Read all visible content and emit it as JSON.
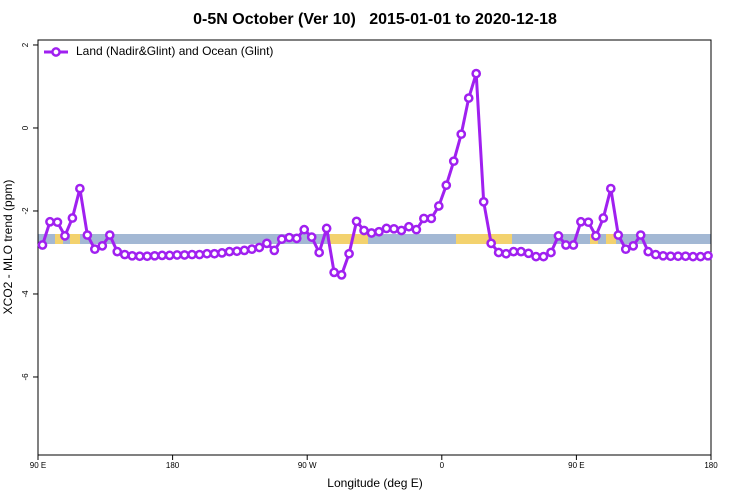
{
  "chart_data": {
    "type": "line",
    "title": "0-5N October (Ver 10)   2015-01-01 to 2020-12-18",
    "x_label": "Longitude (deg E)",
    "y_label": "XCO2 - MLO trend (ppm)",
    "xlim": [
      90,
      540
    ],
    "ylim": [
      -7.88,
      2.12
    ],
    "xticks": [
      {
        "value": 90,
        "label": "90 E"
      },
      {
        "value": 180,
        "label": "180"
      },
      {
        "value": 270,
        "label": "90 W"
      },
      {
        "value": 360,
        "label": "0"
      },
      {
        "value": 450,
        "label": "90 E"
      },
      {
        "value": 540,
        "label": "180"
      }
    ],
    "yticks": [
      2,
      0,
      -2,
      -4,
      -6
    ],
    "legend": "top-left",
    "grid": false,
    "x": [
      93,
      98,
      103,
      108,
      113,
      118,
      123,
      128,
      133,
      138,
      143,
      148,
      153,
      158,
      163,
      168,
      173,
      178,
      183,
      188,
      193,
      198,
      203,
      208,
      213,
      218,
      223,
      228,
      233,
      238,
      243,
      248,
      253,
      258,
      263,
      268,
      273,
      278,
      283,
      288,
      293,
      298,
      303,
      308,
      313,
      318,
      323,
      328,
      333,
      338,
      343,
      348,
      353,
      358,
      363,
      368,
      373,
      378,
      383,
      388,
      393,
      398,
      403,
      408,
      413,
      418,
      423,
      428,
      433,
      438,
      443,
      448,
      453,
      458,
      463,
      468,
      473,
      478,
      483,
      488,
      493,
      498,
      503,
      508,
      513,
      518,
      523,
      528,
      533,
      538
    ],
    "series": [
      {
        "name": "Land (Nadir&Glint) and Ocean (Glint)",
        "color": "#a020f0",
        "values": [
          -2.82,
          -2.26,
          -2.27,
          -2.6,
          -2.17,
          -1.46,
          -2.58,
          -2.92,
          -2.84,
          -2.58,
          -2.98,
          -3.05,
          -3.08,
          -3.09,
          -3.09,
          -3.08,
          -3.07,
          -3.07,
          -3.06,
          -3.06,
          -3.05,
          -3.05,
          -3.03,
          -3.03,
          -3.01,
          -2.98,
          -2.97,
          -2.95,
          -2.92,
          -2.88,
          -2.78,
          -2.95,
          -2.68,
          -2.64,
          -2.66,
          -2.45,
          -2.63,
          -3.0,
          -2.42,
          -3.48,
          -3.54,
          -3.03,
          -2.25,
          -2.47,
          -2.53,
          -2.5,
          -2.42,
          -2.43,
          -2.47,
          -2.38,
          -2.45,
          -2.18,
          -2.18,
          -1.88,
          -1.38,
          -0.8,
          -0.15,
          0.72,
          1.31,
          -1.78,
          -2.78,
          -3.0,
          -3.03,
          -2.98,
          -2.98,
          -3.02,
          -3.1,
          -3.1,
          -3.0,
          -2.6,
          -2.82,
          -2.82,
          -2.26,
          -2.27,
          -2.6,
          -2.17,
          -1.46,
          -2.58,
          -2.92,
          -2.84,
          -2.58,
          -2.98,
          -3.05,
          -3.08,
          -3.09,
          -3.09,
          -3.09,
          -3.1,
          -3.1,
          -3.08
        ]
      }
    ]
  }
}
